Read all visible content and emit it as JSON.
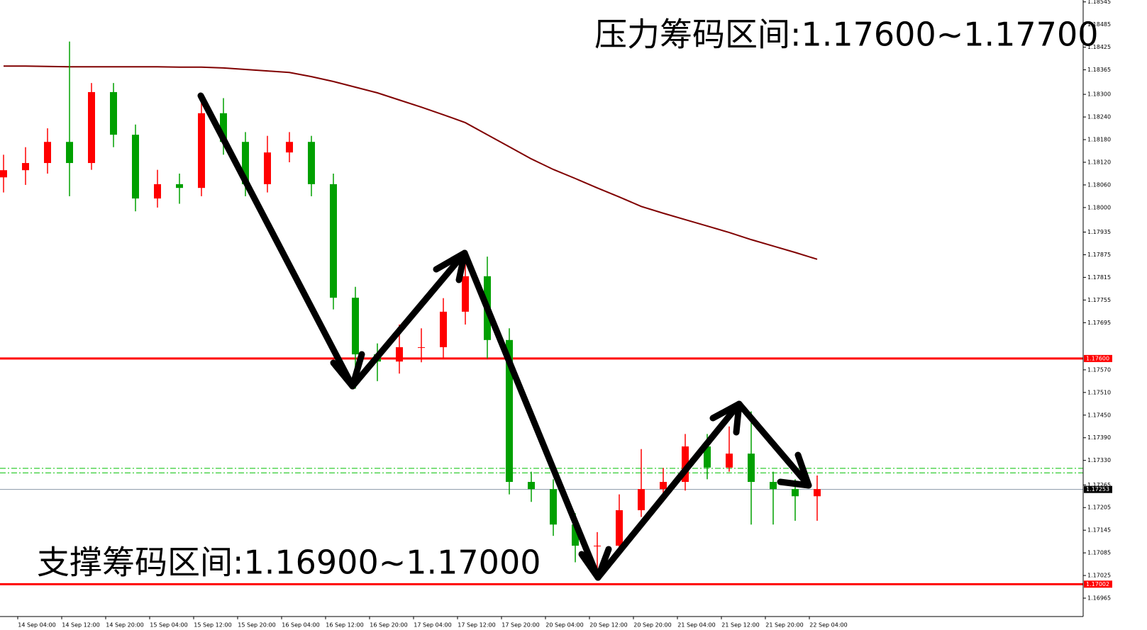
{
  "chart_data": {
    "type": "candlestick",
    "annotations": [
      "压力筹码区间:1.17600~1.17700",
      "支撑筹码区间:1.16900~1.17000"
    ],
    "categories": [
      "14 Sep 04:00",
      "14 Sep 12:00",
      "14 Sep 20:00",
      "15 Sep 04:00",
      "15 Sep 12:00",
      "15 Sep 20:00",
      "16 Sep 04:00",
      "16 Sep 12:00",
      "16 Sep 20:00",
      "17 Sep 04:00",
      "17 Sep 12:00",
      "17 Sep 20:00",
      "20 Sep 04:00",
      "20 Sep 12:00",
      "20 Sep 20:00",
      "21 Sep 04:00",
      "21 Sep 12:00",
      "21 Sep 20:00",
      "22 Sep 04:00"
    ],
    "candles": {
      "open": [
        1.1808,
        1.18099,
        1.18118,
        1.18174,
        1.18118,
        1.18306,
        1.18193,
        1.18024,
        1.18062,
        1.18052,
        1.1825,
        1.18174,
        1.18062,
        1.18146,
        1.18174,
        1.18062,
        1.17761,
        1.17611,
        1.17592,
        1.1763,
        1.1763,
        1.17724,
        1.17818,
        1.17649,
        1.17273,
        1.17254,
        1.1716,
        1.17104,
        1.17104,
        1.17198,
        1.17254,
        1.17273,
        1.17367,
        1.17311,
        1.17348,
        1.17273,
        1.17254,
        1.17235
      ],
      "high": [
        1.1814,
        1.1816,
        1.1821,
        1.1844,
        1.1833,
        1.1833,
        1.1822,
        1.181,
        1.1809,
        1.183,
        1.1829,
        1.182,
        1.1819,
        1.182,
        1.1819,
        1.1809,
        1.1779,
        1.1764,
        1.1769,
        1.1768,
        1.1776,
        1.1788,
        1.1787,
        1.1768,
        1.173,
        1.1728,
        1.1719,
        1.1714,
        1.1724,
        1.1736,
        1.1731,
        1.174,
        1.174,
        1.1742,
        1.1746,
        1.173,
        1.1728,
        1.1729
      ],
      "low": [
        1.1804,
        1.1806,
        1.1809,
        1.1803,
        1.181,
        1.1816,
        1.1799,
        1.18,
        1.1801,
        1.1803,
        1.1814,
        1.1803,
        1.1804,
        1.1812,
        1.1803,
        1.1773,
        1.1752,
        1.1754,
        1.1756,
        1.1759,
        1.176,
        1.1769,
        1.176,
        1.1724,
        1.1722,
        1.1713,
        1.1706,
        1.1702,
        1.1708,
        1.1718,
        1.1722,
        1.1725,
        1.1728,
        1.173,
        1.1716,
        1.1716,
        1.1717,
        1.1717
      ],
      "close": [
        1.18099,
        1.18118,
        1.18174,
        1.18118,
        1.18306,
        1.18193,
        1.18024,
        1.18062,
        1.18052,
        1.1825,
        1.18174,
        1.18062,
        1.18146,
        1.18174,
        1.18062,
        1.17761,
        1.17611,
        1.17592,
        1.1763,
        1.1763,
        1.17724,
        1.17818,
        1.17649,
        1.17273,
        1.17254,
        1.1716,
        1.17104,
        1.17104,
        1.17198,
        1.17254,
        1.17273,
        1.17367,
        1.17311,
        1.17348,
        1.17273,
        1.17254,
        1.17235,
        1.17254
      ]
    },
    "up_color": "#ff0000",
    "down_color": "#00a000",
    "ma_line": {
      "color": "#800000",
      "values": [
        1.18375,
        1.18375,
        1.18374,
        1.18373,
        1.18373,
        1.18373,
        1.18373,
        1.18373,
        1.18372,
        1.18372,
        1.1837,
        1.18366,
        1.18362,
        1.18358,
        1.18347,
        1.18334,
        1.18319,
        1.18304,
        1.18285,
        1.18266,
        1.18246,
        1.18225,
        1.18193,
        1.18161,
        1.18129,
        1.18101,
        1.18077,
        1.18052,
        1.18028,
        1.18003,
        1.17985,
        1.17968,
        1.17951,
        1.17934,
        1.17915,
        1.17898,
        1.17881,
        1.17863
      ]
    },
    "levels": [
      {
        "value": 1.176,
        "label": "1.17600",
        "color": "#ff0000"
      },
      {
        "value": 1.17002,
        "label": "1.17002",
        "color": "#ff0000"
      },
      {
        "value": 1.17253,
        "label": "1.17253",
        "color": "#000000"
      }
    ],
    "green_levels": {
      "color": "#00c000",
      "values": [
        1.17309,
        1.17297
      ]
    },
    "ylim": [
      1.1692,
      1.1855
    ],
    "yticks": [
      1.18545,
      1.18485,
      1.18425,
      1.18365,
      {
        "value": 1.183,
        "label": "1.18300"
      },
      {
        "value": 1.1824,
        "label": "1.18240"
      },
      {
        "value": 1.1818,
        "label": "1.18180"
      },
      {
        "value": 1.1812,
        "label": "1.18120"
      },
      {
        "value": 1.1806,
        "label": "1.18060"
      },
      {
        "value": 1.18,
        "label": "1.18000"
      },
      1.17935,
      1.17875,
      1.17815,
      1.17755,
      1.17695,
      {
        "value": 1.1757,
        "label": "1.17570"
      },
      {
        "value": 1.1751,
        "label": "1.17510"
      },
      {
        "value": 1.1745,
        "label": "1.17450"
      },
      {
        "value": 1.1739,
        "label": "1.17390"
      },
      {
        "value": 1.1733,
        "label": "1.17330"
      },
      1.17265,
      1.17205,
      1.17145,
      1.17085,
      1.17025,
      1.16965
    ]
  }
}
